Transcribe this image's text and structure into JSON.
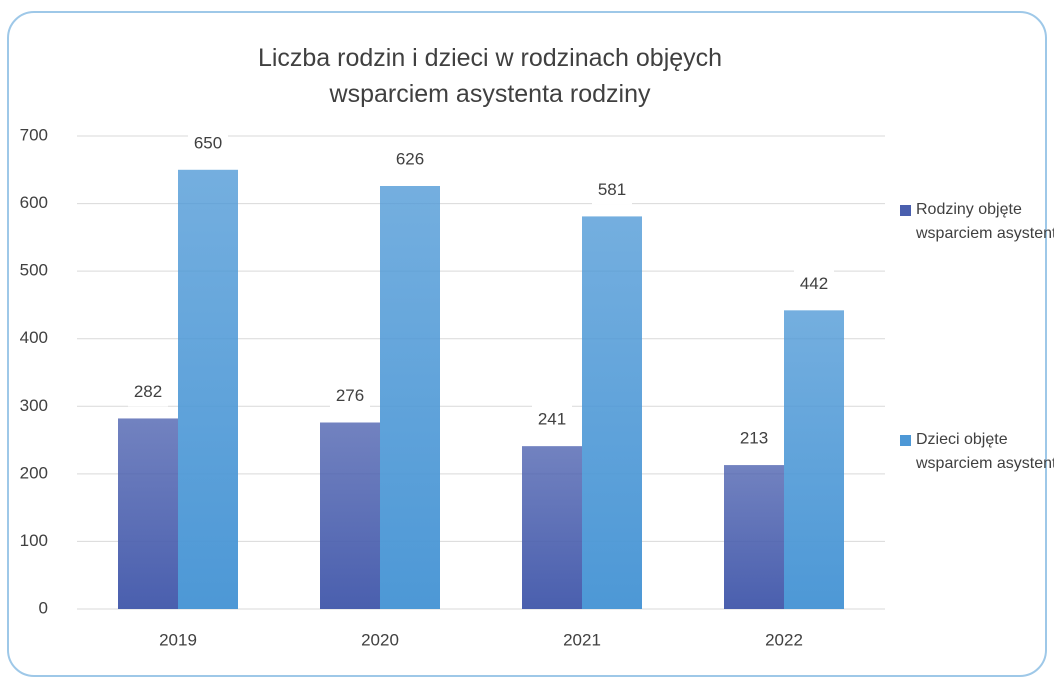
{
  "chart_data": {
    "type": "bar",
    "title": "Liczba rodzin i dzieci w rodzinach objęych wsparciem asystenta rodziny",
    "categories": [
      "2019",
      "2020",
      "2021",
      "2022"
    ],
    "series": [
      {
        "name": "Rodziny objęte wsparciem asystenta",
        "color": "#4a5fae",
        "values": [
          282,
          276,
          241,
          213
        ]
      },
      {
        "name": "Dzieci objęte wsparciem asystenta",
        "color": "#4d98d6",
        "values": [
          650,
          626,
          581,
          442
        ]
      }
    ],
    "ylim": [
      0,
      700
    ],
    "yticks": [
      0,
      100,
      200,
      300,
      400,
      500,
      600,
      700
    ],
    "grid": true,
    "legend": "right"
  }
}
